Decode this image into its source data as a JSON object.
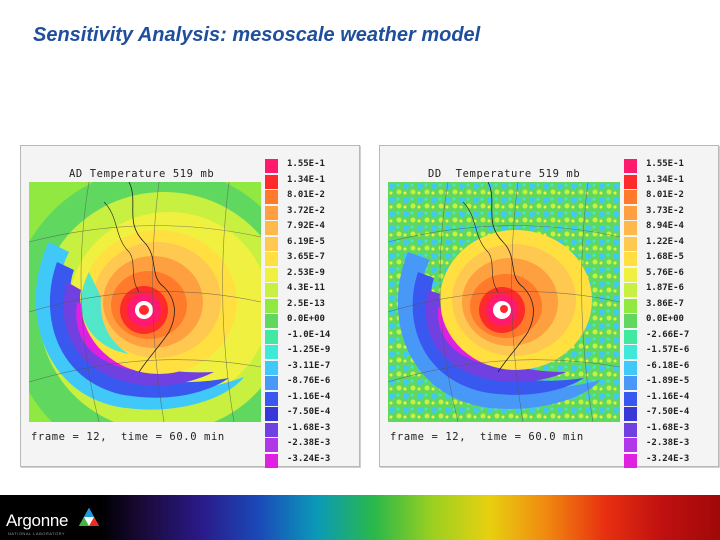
{
  "slide": {
    "title": "Sensitivity Analysis: mesoscale weather model"
  },
  "panels": [
    {
      "title": "AD Temperature 519 mb",
      "footer": "frame = 12,  time = 60.0 min",
      "legend": [
        {
          "label": "1.55E-1",
          "color": "#ff1a6e"
        },
        {
          "label": "1.34E-1",
          "color": "#ff2a2a"
        },
        {
          "label": "8.01E-2",
          "color": "#ff7a2a"
        },
        {
          "label": "3.72E-2",
          "color": "#ffa040"
        },
        {
          "label": "7.92E-4",
          "color": "#ffb84a"
        },
        {
          "label": "6.19E-5",
          "color": "#ffc850"
        },
        {
          "label": "3.65E-7",
          "color": "#ffe040"
        },
        {
          "label": "2.53E-9",
          "color": "#f0f040"
        },
        {
          "label": "4.3E-11",
          "color": "#c8f040"
        },
        {
          "label": "2.5E-13",
          "color": "#90e840"
        },
        {
          "label": "0.0E+00",
          "color": "#60d860"
        },
        {
          "label": "-1.0E-14",
          "color": "#40e8a0"
        },
        {
          "label": "-1.25E-9",
          "color": "#40e8d8"
        },
        {
          "label": "-3.11E-7",
          "color": "#40c8f8"
        },
        {
          "label": "-8.76E-6",
          "color": "#4898f8"
        },
        {
          "label": "-1.16E-4",
          "color": "#3858f0"
        },
        {
          "label": "-7.50E-4",
          "color": "#3838d8"
        },
        {
          "label": "-1.68E-3",
          "color": "#7040e0"
        },
        {
          "label": "-2.38E-3",
          "color": "#b038e8"
        },
        {
          "label": "-3.24E-3",
          "color": "#e020e0"
        }
      ]
    },
    {
      "title": "DD  Temperature 519 mb",
      "footer": "frame = 12,  time = 60.0 min",
      "legend": [
        {
          "label": "1.55E-1",
          "color": "#ff1a6e"
        },
        {
          "label": "1.34E-1",
          "color": "#ff2a2a"
        },
        {
          "label": "8.01E-2",
          "color": "#ff7a2a"
        },
        {
          "label": "3.73E-2",
          "color": "#ffa040"
        },
        {
          "label": "8.94E-4",
          "color": "#ffb84a"
        },
        {
          "label": "1.22E-4",
          "color": "#ffc850"
        },
        {
          "label": "1.68E-5",
          "color": "#ffe040"
        },
        {
          "label": "5.76E-6",
          "color": "#f0f040"
        },
        {
          "label": "1.87E-6",
          "color": "#c8f040"
        },
        {
          "label": "3.86E-7",
          "color": "#90e840"
        },
        {
          "label": "0.0E+00",
          "color": "#60d860"
        },
        {
          "label": "-2.66E-7",
          "color": "#40e8a0"
        },
        {
          "label": "-1.57E-6",
          "color": "#40e8d8"
        },
        {
          "label": "-6.18E-6",
          "color": "#40c8f8"
        },
        {
          "label": "-1.89E-5",
          "color": "#4898f8"
        },
        {
          "label": "-1.16E-4",
          "color": "#3858f0"
        },
        {
          "label": "-7.50E-4",
          "color": "#3838d8"
        },
        {
          "label": "-1.68E-3",
          "color": "#7040e0"
        },
        {
          "label": "-2.38E-3",
          "color": "#b038e8"
        },
        {
          "label": "-3.24E-3",
          "color": "#e020e0"
        }
      ]
    }
  ],
  "footer_bar": {
    "logo_text": "Argonne",
    "logo_subtext": "NATIONAL LABORATORY"
  }
}
